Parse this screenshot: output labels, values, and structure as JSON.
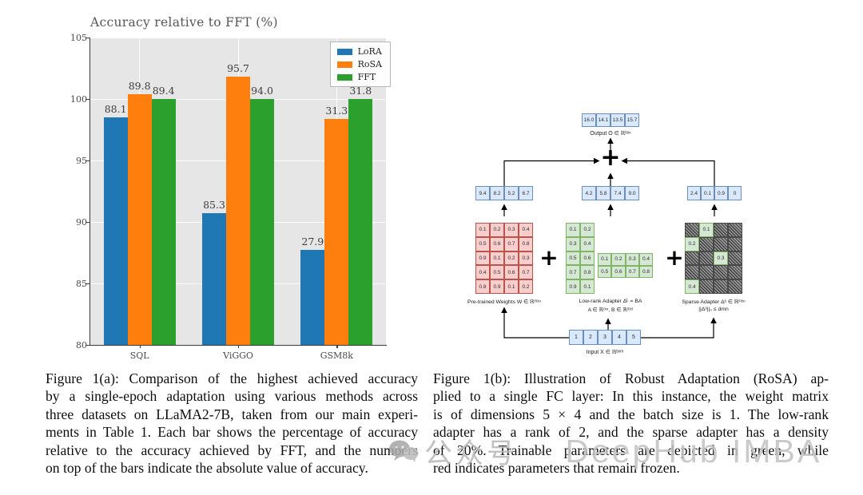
{
  "chart_data": {
    "type": "bar",
    "title": "Accuracy relative to FFT (%)",
    "categories": [
      "SQL",
      "ViGGO",
      "GSM8k"
    ],
    "xlabel": "",
    "ylabel": "",
    "ylim": [
      80,
      105
    ],
    "yticks": [
      80,
      85,
      90,
      95,
      100,
      105
    ],
    "grid": true,
    "plot_background": "#e6e6e6",
    "legend_position": "upper right",
    "series": [
      {
        "name": "LoRA",
        "color": "#1f77b4",
        "relative_values": [
          98.5,
          90.7,
          87.7
        ],
        "bar_labels": [
          "88.1",
          "85.3",
          "27.9"
        ]
      },
      {
        "name": "RoSA",
        "color": "#ff7f0e",
        "relative_values": [
          100.4,
          101.8,
          98.4
        ],
        "bar_labels": [
          "89.8",
          "95.7",
          "31.3"
        ]
      },
      {
        "name": "FFT",
        "color": "#2ca02c",
        "relative_values": [
          100.0,
          100.0,
          100.0
        ],
        "bar_labels": [
          "89.4",
          "94.0",
          "31.8"
        ]
      }
    ]
  },
  "diagram": {
    "output": {
      "values": [
        "16.0",
        "14.1",
        "13.5",
        "15.7"
      ],
      "label": "Output O ∈ ℝᵇˣⁿ"
    },
    "sum_plus": "+",
    "plus_1": "+",
    "plus_2": "+",
    "branch_vectors": {
      "pretrained": [
        "9.4",
        "8.2",
        "5.2",
        "6.7"
      ],
      "lowrank": [
        "4.2",
        "5.8",
        "7.4",
        "9.0"
      ],
      "sparse": [
        "2.4",
        "0.1",
        "0.9",
        "0"
      ]
    },
    "pretrained_matrix": {
      "rows": [
        [
          "0.1",
          "0.2",
          "0.3",
          "0.4"
        ],
        [
          "0.5",
          "0.6",
          "0.7",
          "0.8"
        ],
        [
          "0.9",
          "0.1",
          "0.2",
          "0.3"
        ],
        [
          "0.4",
          "0.5",
          "0.6",
          "0.7"
        ],
        [
          "0.8",
          "0.9",
          "0.1",
          "0.2"
        ]
      ],
      "label": "Pre-trained Weights W ∈ ℝᵐˣⁿ"
    },
    "lowrank_B": {
      "rows": [
        [
          "0.1",
          "0.2"
        ],
        [
          "0.3",
          "0.4"
        ],
        [
          "0.5",
          "0.6"
        ],
        [
          "0.7",
          "0.8"
        ],
        [
          "0.9",
          "0.1"
        ]
      ]
    },
    "lowrank_A": {
      "rows": [
        [
          "0.1",
          "0.2",
          "0.3",
          "0.4"
        ],
        [
          "0.5",
          "0.6",
          "0.7",
          "0.8"
        ]
      ]
    },
    "lowrank_label_1": "Low-rank Adapter Δᴸ = BA",
    "lowrank_label_2": "A ∈ ℝʳˣⁿ, B ∈ ℝᵐˣʳ",
    "sparse_matrix": {
      "rows": [
        [
          null,
          "0.1",
          null,
          null
        ],
        [
          "0.2",
          null,
          null,
          null
        ],
        [
          null,
          null,
          "0.3",
          null
        ],
        [
          null,
          null,
          null,
          null
        ],
        [
          "0.4",
          null,
          null,
          null
        ]
      ],
      "label_1": "Sparse Adapter Δˢ ∈ ℝᵐˣⁿ",
      "label_2": "||Δˢ||₀ ≤ dmn"
    },
    "input": {
      "values": [
        "1",
        "2",
        "3",
        "4",
        "5"
      ],
      "label": "Input X ∈ ℝᵇˣᵐ"
    },
    "colors": {
      "vector_fill": "#dae8fc",
      "vector_border": "#6c8ebf",
      "frozen_fill": "#f8cecc",
      "frozen_border": "#b85450",
      "trainable_fill": "#d5e8d4",
      "trainable_border": "#82b366"
    }
  },
  "captions": {
    "figure_a_lines": [
      "Figure 1(a): Comparison of the highest achieved accuracy",
      "by a single-epoch adaptation using various methods across",
      "three datasets on LLaMA2-7B, taken from our main experi-",
      "ments in Table 1. Each bar shows the percentage of accuracy",
      "relative to the accuracy achieved by FFT, and the numbers",
      "on top of the bars indicate the absolute value of accuracy."
    ],
    "figure_b_lines": [
      "Figure 1(b): Illustration of Robust Adaptation (RoSA) ap-",
      "plied to a single FC layer: In this instance, the weight matrix",
      "is of dimensions 5 × 4 and the batch size is 1. The low-rank",
      "adapter has a rank of 2, and the sparse adapter has a density",
      "of 20%. Trainable parameters are depicted in green, while",
      "red indicates parameters that remain frozen."
    ]
  },
  "watermark": {
    "icon": "wechat-icon",
    "text_cn": "公众号",
    "separator": "·",
    "text_en": "DeepHub IMBA",
    "color": "#bdbdbd"
  }
}
